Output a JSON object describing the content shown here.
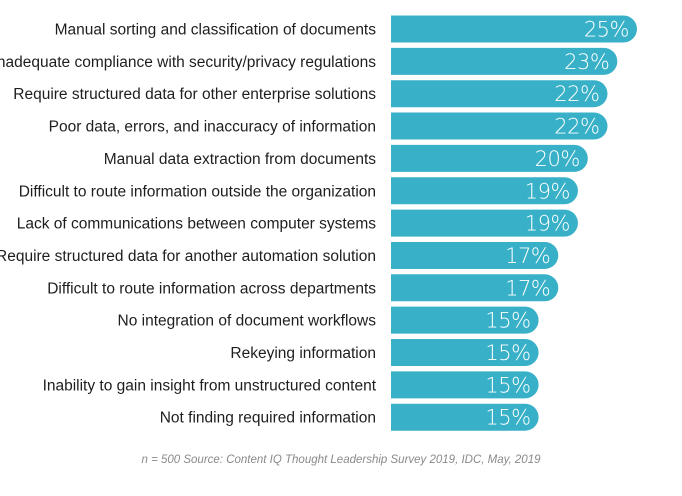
{
  "chart_data": {
    "type": "bar",
    "orientation": "horizontal",
    "categories": [
      "Manual sorting and classification of documents",
      "Inadequate compliance with security/privacy regulations",
      "Require structured data for other enterprise solutions",
      "Poor data, errors, and inaccuracy of information",
      "Manual data extraction from documents",
      "Difficult to route information outside the organization",
      "Lack of communications between computer systems",
      "Require structured data for another automation solution",
      "Difficult to route information across departments",
      "No integration of document workflows",
      "Rekeying information",
      "Inability to gain insight from unstructured content",
      "Not finding required information"
    ],
    "values": [
      25,
      23,
      22,
      22,
      20,
      19,
      19,
      17,
      17,
      15,
      15,
      15,
      15
    ],
    "value_labels": [
      "25%",
      "23%",
      "22%",
      "22%",
      "20%",
      "19%",
      "19%",
      "17%",
      "17%",
      "15%",
      "15%",
      "15%",
      "15%"
    ],
    "bar_color": "#38b1c8",
    "xlim": [
      0,
      25
    ],
    "grid": false,
    "legend": "none"
  },
  "footnote": "n = 500   Source: Content IQ Thought Leadership Survey 2019, IDC, May, 2019"
}
